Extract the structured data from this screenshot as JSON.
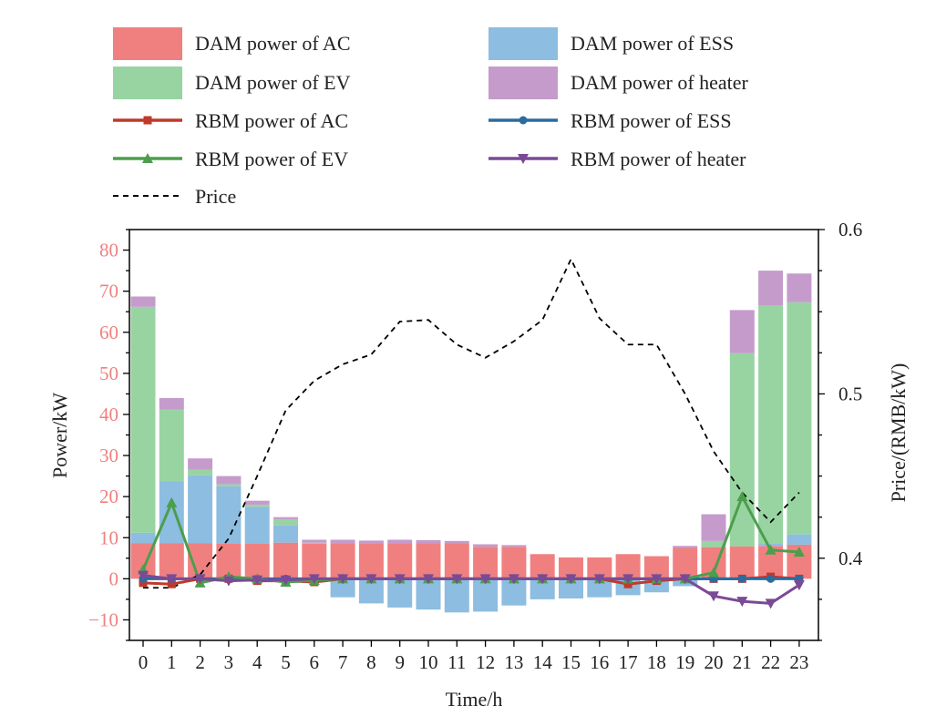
{
  "chart_data": {
    "type": "bar",
    "xlabel": "Time/h",
    "ylabel_left": "Power/kW",
    "ylabel_right": "Price/(RMB/kW)",
    "ylim_left": [
      -15,
      85
    ],
    "ylim_right": [
      0.35,
      0.6
    ],
    "yticks_left": [
      -10,
      0,
      10,
      20,
      30,
      40,
      50,
      60,
      70,
      80
    ],
    "ytick_labels_left": [
      "−10",
      "0",
      "10",
      "20",
      "30",
      "40",
      "50",
      "60",
      "70",
      "80"
    ],
    "yticks_right": [
      0.4,
      0.5,
      0.6
    ],
    "ytick_labels_right": [
      "0.4",
      "0.5",
      "0.6"
    ],
    "categories": [
      "0",
      "1",
      "2",
      "3",
      "4",
      "5",
      "6",
      "7",
      "8",
      "9",
      "10",
      "11",
      "12",
      "13",
      "14",
      "15",
      "16",
      "17",
      "18",
      "19",
      "20",
      "21",
      "22",
      "23"
    ],
    "colors": {
      "dam_ac": "#f08080",
      "dam_ess": "#8dbde0",
      "dam_ev": "#98d4a2",
      "dam_heater": "#c59bcc",
      "rbm_ac": "#c0392b",
      "rbm_ess": "#2c6b9e",
      "rbm_ev": "#4c9e4c",
      "rbm_heater": "#7b4a96",
      "price": "#000000"
    },
    "legend": [
      {
        "key": "dam_ac",
        "label": "DAM power of AC",
        "kind": "bar"
      },
      {
        "key": "dam_ess",
        "label": "DAM power of ESS",
        "kind": "bar"
      },
      {
        "key": "dam_ev",
        "label": "DAM power of EV",
        "kind": "bar"
      },
      {
        "key": "dam_heater",
        "label": "DAM power of heater",
        "kind": "bar"
      },
      {
        "key": "rbm_ac",
        "label": "RBM power of AC",
        "kind": "line",
        "marker": "square"
      },
      {
        "key": "rbm_ess",
        "label": "RBM power of ESS",
        "kind": "line",
        "marker": "circle"
      },
      {
        "key": "rbm_ev",
        "label": "RBM power of EV",
        "kind": "line",
        "marker": "triangle-up"
      },
      {
        "key": "rbm_heater",
        "label": "RBM power of heater",
        "kind": "line",
        "marker": "triangle-down"
      },
      {
        "key": "price",
        "label": "Price",
        "kind": "dashed"
      }
    ],
    "series": [
      {
        "name": "DAM power of AC",
        "key": "dam_ac",
        "values": [
          8.7,
          8.7,
          8.7,
          8.5,
          8.5,
          8.8,
          8.5,
          8.5,
          8.5,
          8.7,
          8.7,
          8.7,
          7.8,
          7.8,
          6.0,
          5.2,
          5.2,
          6.0,
          5.5,
          7.5,
          7.7,
          7.9,
          8.0,
          8.3
        ]
      },
      {
        "name": "DAM power of ESS",
        "key": "dam_ess",
        "values": [
          2.5,
          15,
          16.5,
          14,
          9,
          4.2,
          0,
          -4.5,
          -6,
          -7,
          -7.5,
          -8.2,
          -8,
          -6.5,
          -5,
          -4.8,
          -4.5,
          -4,
          -3.3,
          -1.8,
          0,
          0,
          0.5,
          2.5
        ]
      },
      {
        "name": "DAM power of EV",
        "key": "dam_ev",
        "values": [
          55,
          17.5,
          1.3,
          0.5,
          0.5,
          1.5,
          0.3,
          0,
          0,
          0,
          0,
          0,
          0,
          0,
          0,
          0,
          0,
          0,
          0,
          0,
          1.5,
          47,
          58,
          56.5
        ]
      },
      {
        "name": "DAM power of heater",
        "key": "dam_heater",
        "values": [
          2.5,
          2.8,
          2.8,
          2,
          1,
          0.5,
          0.7,
          1,
          0.8,
          0.8,
          0.7,
          0.5,
          0.6,
          0.4,
          0,
          0,
          0,
          0,
          0,
          0.5,
          6.5,
          10.5,
          8.5,
          7
        ]
      },
      {
        "name": "RBM power of AC",
        "key": "rbm_ac",
        "values": [
          -1.0,
          -1.3,
          0,
          0,
          -0.5,
          -0.5,
          -0.8,
          0,
          0,
          0,
          0,
          0,
          0,
          0,
          0,
          0,
          0,
          -1.3,
          -0.5,
          0,
          0,
          0,
          0.5,
          0
        ]
      },
      {
        "name": "RBM power of ESS",
        "key": "rbm_ess",
        "values": [
          0,
          0,
          0,
          0,
          0,
          0,
          0,
          0,
          0,
          0,
          0,
          0,
          0,
          0,
          0,
          0,
          0,
          0,
          0,
          0,
          0,
          0,
          0,
          0
        ]
      },
      {
        "name": "RBM power of EV",
        "key": "rbm_ev",
        "values": [
          2.2,
          18.5,
          -1.0,
          0.5,
          0,
          -0.8,
          -0.4,
          0,
          0,
          0,
          0,
          0,
          0,
          0,
          0,
          0,
          0,
          0,
          0,
          0,
          1.5,
          20,
          7,
          6.5
        ]
      },
      {
        "name": "RBM power of heater",
        "key": "rbm_heater",
        "values": [
          0.8,
          0,
          0,
          -0.5,
          -0.3,
          -0.3,
          0,
          0,
          0,
          0,
          0,
          0,
          0,
          0,
          0,
          0,
          0,
          0,
          0,
          0,
          -4.2,
          -5.5,
          -6,
          -1.5
        ]
      },
      {
        "name": "Price",
        "key": "price",
        "axis": "right",
        "values": [
          0.382,
          0.382,
          0.39,
          0.412,
          0.45,
          0.49,
          0.508,
          0.518,
          0.524,
          0.544,
          0.545,
          0.53,
          0.522,
          0.532,
          0.545,
          0.582,
          0.546,
          0.53,
          0.53,
          0.5,
          0.465,
          0.44,
          0.422,
          0.44
        ]
      }
    ]
  }
}
